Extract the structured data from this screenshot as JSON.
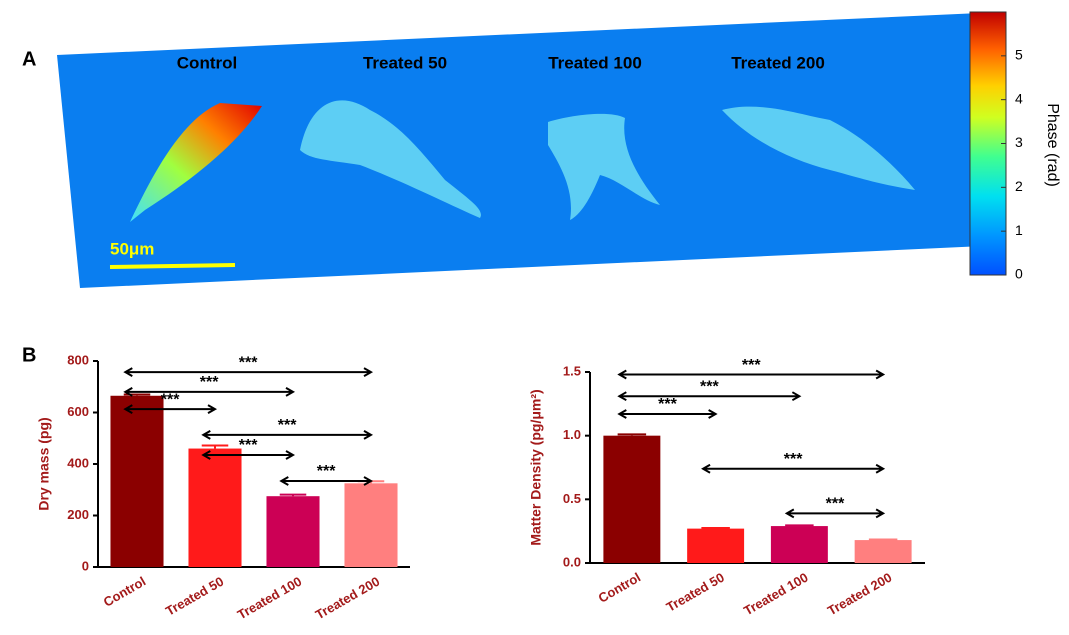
{
  "panel_a": {
    "label": "A",
    "titles": [
      "Control",
      "Treated 50",
      "Treated 100",
      "Treated 200"
    ],
    "scale_bar": "50μm",
    "colorbar": {
      "label": "Phase (rad)",
      "lim": [
        0,
        6
      ],
      "ticks": [
        0,
        1,
        2,
        3,
        4,
        5
      ]
    }
  },
  "panel_b_label": "B",
  "chart_data": [
    {
      "type": "bar",
      "ylabel": "Dry mass (pg)",
      "categories": [
        "Control",
        "Treated 50",
        "Treated 100",
        "Treated 200"
      ],
      "values": [
        665,
        460,
        275,
        325
      ],
      "errors": [
        5,
        12,
        6,
        8
      ],
      "colors": [
        "#8b0000",
        "#ff1a1a",
        "#cc0055",
        "#ff7f7f"
      ],
      "ylim": [
        0,
        800
      ],
      "yticks": [
        0,
        200,
        400,
        600,
        800
      ],
      "annotations": [
        {
          "text": "***",
          "between": [
            "Control",
            "Treated 200"
          ],
          "y": 757
        },
        {
          "text": "***",
          "between": [
            "Control",
            "Treated 100"
          ],
          "y": 680
        },
        {
          "text": "***",
          "between": [
            "Control",
            "Treated 50"
          ],
          "y": 613
        },
        {
          "text": "***",
          "between": [
            "Treated 50",
            "Treated 200"
          ],
          "y": 513
        },
        {
          "text": "***",
          "between": [
            "Treated 50",
            "Treated 100"
          ],
          "y": 435
        },
        {
          "text": "***",
          "between": [
            "Treated 100",
            "Treated 200"
          ],
          "y": 334
        }
      ]
    },
    {
      "type": "bar",
      "ylabel": "Matter Density (pg/μm²)",
      "categories": [
        "Control",
        "Treated 50",
        "Treated 100",
        "Treated 200"
      ],
      "values": [
        1.0,
        0.27,
        0.29,
        0.18
      ],
      "errors": [
        0.01,
        0.005,
        0.005,
        0.005
      ],
      "colors": [
        "#8b0000",
        "#ff1a1a",
        "#cc0055",
        "#ff7f7f"
      ],
      "ylim": [
        0,
        1.5
      ],
      "yticks": [
        {
          "value": 0,
          "label": "0.0"
        },
        {
          "value": 0.5,
          "label": "0.5"
        },
        {
          "value": 1,
          "label": "1.0"
        },
        {
          "value": 1.5,
          "label": "1.5"
        }
      ],
      "annotations": [
        {
          "text": "***",
          "between": [
            "Control",
            "Treated 200"
          ],
          "y": 1.48
        },
        {
          "text": "***",
          "between": [
            "Control",
            "Treated 100"
          ],
          "y": 1.31
        },
        {
          "text": "***",
          "between": [
            "Control",
            "Treated 50"
          ],
          "y": 1.17
        },
        {
          "text": "***",
          "between": [
            "Treated 50",
            "Treated 200"
          ],
          "y": 0.74
        },
        {
          "text": "***",
          "between": [
            "Treated 100",
            "Treated 200"
          ],
          "y": 0.39
        }
      ]
    }
  ]
}
